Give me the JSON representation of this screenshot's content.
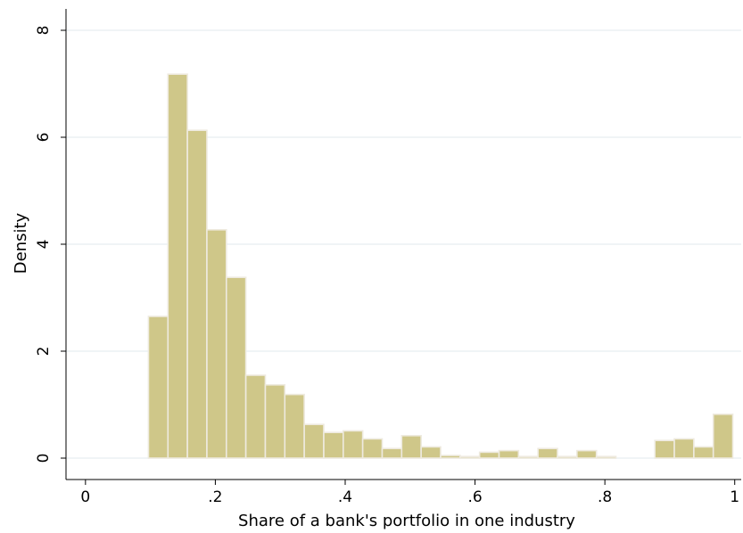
{
  "chart_data": {
    "type": "histogram",
    "xlabel": "Share of a bank's portfolio in one industry",
    "ylabel": "Density",
    "xlim": [
      -0.03,
      1.01
    ],
    "ylim": [
      -0.4,
      8.4
    ],
    "x_ticks": [
      {
        "value": 0,
        "label": "0"
      },
      {
        "value": 0.2,
        "label": ".2"
      },
      {
        "value": 0.4,
        "label": ".4"
      },
      {
        "value": 0.6,
        "label": ".6"
      },
      {
        "value": 0.8,
        "label": ".8"
      },
      {
        "value": 1,
        "label": "1"
      }
    ],
    "y_ticks": [
      {
        "value": 0,
        "label": "0"
      },
      {
        "value": 2,
        "label": "2"
      },
      {
        "value": 4,
        "label": "4"
      },
      {
        "value": 6,
        "label": "6"
      },
      {
        "value": 8,
        "label": "8"
      }
    ],
    "grid": true,
    "bar_color": "#cfc789",
    "bar_outline_color": "#eeeadf",
    "grid_color": "#e6eef1",
    "bin_width": 0.03,
    "bins": [
      {
        "start": 0.097,
        "density": 2.65
      },
      {
        "start": 0.127,
        "density": 7.18
      },
      {
        "start": 0.157,
        "density": 6.13
      },
      {
        "start": 0.187,
        "density": 4.27
      },
      {
        "start": 0.217,
        "density": 3.38
      },
      {
        "start": 0.247,
        "density": 1.55
      },
      {
        "start": 0.277,
        "density": 1.37
      },
      {
        "start": 0.307,
        "density": 1.19
      },
      {
        "start": 0.337,
        "density": 0.63
      },
      {
        "start": 0.367,
        "density": 0.48
      },
      {
        "start": 0.397,
        "density": 0.51
      },
      {
        "start": 0.427,
        "density": 0.36
      },
      {
        "start": 0.457,
        "density": 0.18
      },
      {
        "start": 0.487,
        "density": 0.42
      },
      {
        "start": 0.517,
        "density": 0.21
      },
      {
        "start": 0.547,
        "density": 0.05
      },
      {
        "start": 0.577,
        "density": 0.03
      },
      {
        "start": 0.607,
        "density": 0.11
      },
      {
        "start": 0.637,
        "density": 0.14
      },
      {
        "start": 0.667,
        "density": 0.03
      },
      {
        "start": 0.697,
        "density": 0.18
      },
      {
        "start": 0.727,
        "density": 0.03
      },
      {
        "start": 0.757,
        "density": 0.14
      },
      {
        "start": 0.787,
        "density": 0.03
      },
      {
        "start": 0.817,
        "density": 0.0
      },
      {
        "start": 0.847,
        "density": 0.0
      },
      {
        "start": 0.877,
        "density": 0.33
      },
      {
        "start": 0.907,
        "density": 0.36
      },
      {
        "start": 0.937,
        "density": 0.21
      },
      {
        "start": 0.967,
        "density": 0.82
      }
    ]
  }
}
